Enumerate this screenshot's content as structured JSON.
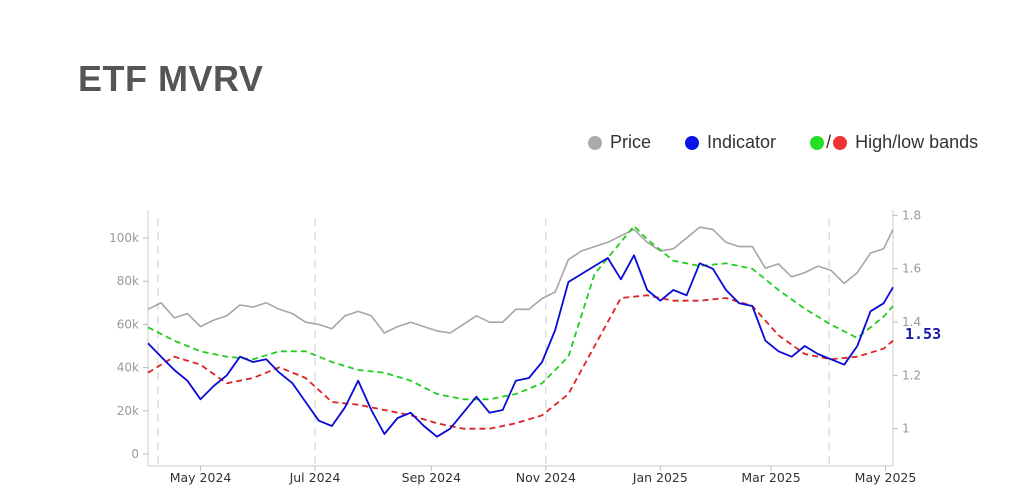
{
  "title": "ETF MVRV",
  "legend": {
    "price_label": "Price",
    "indicator_label": "Indicator",
    "bands_label": "High/low bands",
    "slash": "/"
  },
  "colors": {
    "price": "#a6a6a6",
    "indicator": "#0a0ad6",
    "high_band": "#22cc22",
    "low_band": "#dd2222",
    "legend_price_dot": "#aaaaaa",
    "legend_indicator_dot": "#0a14e6",
    "legend_high_dot": "#22e022",
    "legend_low_dot": "#ee3333"
  },
  "chart_data": {
    "type": "line",
    "x_range": [
      "2024-04-03",
      "2025-05-05"
    ],
    "left_axis": {
      "ticks": [
        "0",
        "20k",
        "40k",
        "60k",
        "80k",
        "100k"
      ],
      "ylim": [
        0,
        110000
      ]
    },
    "right_axis": {
      "ticks": [
        "1",
        "1.2",
        "1.4",
        "1.6",
        "1.8"
      ],
      "ylim": [
        0.86,
        1.82
      ]
    },
    "x_ticks": [
      {
        "date": "2024-05-01",
        "label": "May 2024"
      },
      {
        "date": "2024-07-01",
        "label": "Jul 2024"
      },
      {
        "date": "2024-09-01",
        "label": "Sep 2024"
      },
      {
        "date": "2024-11-01",
        "label": "Nov 2024"
      },
      {
        "date": "2025-01-01",
        "label": "Jan 2025"
      },
      {
        "date": "2025-03-01",
        "label": "Mar 2025"
      },
      {
        "date": "2025-05-01",
        "label": "May 2025"
      }
    ],
    "grid": "vertical dashed at month ticks",
    "legend_position": "top-right",
    "end_label": "1.53",
    "series": [
      {
        "name": "Price",
        "axis": "left",
        "points": [
          [
            "2024-04-03",
            67000
          ],
          [
            "2024-04-10",
            70000
          ],
          [
            "2024-04-17",
            63000
          ],
          [
            "2024-04-24",
            65000
          ],
          [
            "2024-05-01",
            59000
          ],
          [
            "2024-05-08",
            62000
          ],
          [
            "2024-05-15",
            64000
          ],
          [
            "2024-05-22",
            69000
          ],
          [
            "2024-05-29",
            68000
          ],
          [
            "2024-06-05",
            70000
          ],
          [
            "2024-06-12",
            67000
          ],
          [
            "2024-06-19",
            65000
          ],
          [
            "2024-06-26",
            61000
          ],
          [
            "2024-07-03",
            60000
          ],
          [
            "2024-07-10",
            58000
          ],
          [
            "2024-07-17",
            64000
          ],
          [
            "2024-07-24",
            66000
          ],
          [
            "2024-07-31",
            64000
          ],
          [
            "2024-08-07",
            56000
          ],
          [
            "2024-08-14",
            59000
          ],
          [
            "2024-08-21",
            61000
          ],
          [
            "2024-08-28",
            59000
          ],
          [
            "2024-09-04",
            57000
          ],
          [
            "2024-09-11",
            56000
          ],
          [
            "2024-09-18",
            60000
          ],
          [
            "2024-09-25",
            64000
          ],
          [
            "2024-10-02",
            61000
          ],
          [
            "2024-10-09",
            61000
          ],
          [
            "2024-10-16",
            67000
          ],
          [
            "2024-10-23",
            67000
          ],
          [
            "2024-10-30",
            72000
          ],
          [
            "2024-11-06",
            75000
          ],
          [
            "2024-11-13",
            90000
          ],
          [
            "2024-11-20",
            94000
          ],
          [
            "2024-11-27",
            96000
          ],
          [
            "2024-12-04",
            98000
          ],
          [
            "2024-12-11",
            101000
          ],
          [
            "2024-12-18",
            104000
          ],
          [
            "2024-12-25",
            98000
          ],
          [
            "2025-01-01",
            94000
          ],
          [
            "2025-01-08",
            95000
          ],
          [
            "2025-01-15",
            100000
          ],
          [
            "2025-01-22",
            105000
          ],
          [
            "2025-01-29",
            104000
          ],
          [
            "2025-02-05",
            98000
          ],
          [
            "2025-02-12",
            96000
          ],
          [
            "2025-02-19",
            96000
          ],
          [
            "2025-02-26",
            86000
          ],
          [
            "2025-03-05",
            88000
          ],
          [
            "2025-03-12",
            82000
          ],
          [
            "2025-03-19",
            84000
          ],
          [
            "2025-03-26",
            87000
          ],
          [
            "2025-04-02",
            85000
          ],
          [
            "2025-04-09",
            79000
          ],
          [
            "2025-04-16",
            84000
          ],
          [
            "2025-04-23",
            93000
          ],
          [
            "2025-04-30",
            95000
          ],
          [
            "2025-05-05",
            104000
          ]
        ]
      },
      {
        "name": "Indicator",
        "axis": "right",
        "points": [
          [
            "2024-04-03",
            1.32
          ],
          [
            "2024-04-10",
            1.27
          ],
          [
            "2024-04-17",
            1.22
          ],
          [
            "2024-04-24",
            1.18
          ],
          [
            "2024-05-01",
            1.11
          ],
          [
            "2024-05-08",
            1.16
          ],
          [
            "2024-05-15",
            1.2
          ],
          [
            "2024-05-22",
            1.27
          ],
          [
            "2024-05-29",
            1.25
          ],
          [
            "2024-06-05",
            1.26
          ],
          [
            "2024-06-12",
            1.21
          ],
          [
            "2024-06-19",
            1.17
          ],
          [
            "2024-06-26",
            1.1
          ],
          [
            "2024-07-03",
            1.03
          ],
          [
            "2024-07-10",
            1.01
          ],
          [
            "2024-07-17",
            1.08
          ],
          [
            "2024-07-24",
            1.18
          ],
          [
            "2024-07-31",
            1.07
          ],
          [
            "2024-08-07",
            0.98
          ],
          [
            "2024-08-14",
            1.04
          ],
          [
            "2024-08-21",
            1.06
          ],
          [
            "2024-08-28",
            1.01
          ],
          [
            "2024-09-04",
            0.97
          ],
          [
            "2024-09-11",
            1.0
          ],
          [
            "2024-09-18",
            1.06
          ],
          [
            "2024-09-25",
            1.12
          ],
          [
            "2024-10-02",
            1.06
          ],
          [
            "2024-10-09",
            1.07
          ],
          [
            "2024-10-16",
            1.18
          ],
          [
            "2024-10-23",
            1.19
          ],
          [
            "2024-10-30",
            1.25
          ],
          [
            "2024-11-06",
            1.37
          ],
          [
            "2024-11-13",
            1.55
          ],
          [
            "2024-11-20",
            1.58
          ],
          [
            "2024-11-27",
            1.61
          ],
          [
            "2024-12-04",
            1.64
          ],
          [
            "2024-12-11",
            1.56
          ],
          [
            "2024-12-18",
            1.65
          ],
          [
            "2024-12-25",
            1.52
          ],
          [
            "2025-01-01",
            1.48
          ],
          [
            "2025-01-08",
            1.52
          ],
          [
            "2025-01-15",
            1.5
          ],
          [
            "2025-01-22",
            1.62
          ],
          [
            "2025-01-29",
            1.6
          ],
          [
            "2025-02-05",
            1.52
          ],
          [
            "2025-02-12",
            1.47
          ],
          [
            "2025-02-19",
            1.46
          ],
          [
            "2025-02-26",
            1.33
          ],
          [
            "2025-03-05",
            1.29
          ],
          [
            "2025-03-12",
            1.27
          ],
          [
            "2025-03-19",
            1.31
          ],
          [
            "2025-03-26",
            1.28
          ],
          [
            "2025-04-02",
            1.26
          ],
          [
            "2025-04-09",
            1.24
          ],
          [
            "2025-04-16",
            1.31
          ],
          [
            "2025-04-23",
            1.44
          ],
          [
            "2025-04-30",
            1.47
          ],
          [
            "2025-05-05",
            1.53
          ]
        ]
      },
      {
        "name": "High band",
        "axis": "right",
        "points": [
          [
            "2024-04-03",
            1.38
          ],
          [
            "2024-04-17",
            1.33
          ],
          [
            "2024-05-01",
            1.29
          ],
          [
            "2024-05-15",
            1.27
          ],
          [
            "2024-05-29",
            1.26
          ],
          [
            "2024-06-12",
            1.29
          ],
          [
            "2024-06-26",
            1.29
          ],
          [
            "2024-07-10",
            1.25
          ],
          [
            "2024-07-24",
            1.22
          ],
          [
            "2024-08-07",
            1.21
          ],
          [
            "2024-08-21",
            1.18
          ],
          [
            "2024-09-04",
            1.13
          ],
          [
            "2024-09-18",
            1.11
          ],
          [
            "2024-10-02",
            1.11
          ],
          [
            "2024-10-16",
            1.13
          ],
          [
            "2024-10-30",
            1.17
          ],
          [
            "2024-11-13",
            1.27
          ],
          [
            "2024-11-27",
            1.58
          ],
          [
            "2024-12-11",
            1.7
          ],
          [
            "2024-12-18",
            1.76
          ],
          [
            "2024-12-25",
            1.71
          ],
          [
            "2025-01-08",
            1.63
          ],
          [
            "2025-01-22",
            1.61
          ],
          [
            "2025-02-05",
            1.62
          ],
          [
            "2025-02-19",
            1.6
          ],
          [
            "2025-03-05",
            1.52
          ],
          [
            "2025-03-19",
            1.45
          ],
          [
            "2025-04-02",
            1.39
          ],
          [
            "2025-04-16",
            1.34
          ],
          [
            "2025-04-30",
            1.42
          ],
          [
            "2025-05-05",
            1.46
          ]
        ]
      },
      {
        "name": "Low band",
        "axis": "right",
        "points": [
          [
            "2024-04-03",
            1.21
          ],
          [
            "2024-04-17",
            1.27
          ],
          [
            "2024-05-01",
            1.24
          ],
          [
            "2024-05-15",
            1.17
          ],
          [
            "2024-05-29",
            1.19
          ],
          [
            "2024-06-12",
            1.23
          ],
          [
            "2024-06-26",
            1.19
          ],
          [
            "2024-07-10",
            1.1
          ],
          [
            "2024-07-24",
            1.09
          ],
          [
            "2024-08-07",
            1.07
          ],
          [
            "2024-08-21",
            1.05
          ],
          [
            "2024-09-04",
            1.02
          ],
          [
            "2024-09-18",
            1.0
          ],
          [
            "2024-10-02",
            1.0
          ],
          [
            "2024-10-16",
            1.02
          ],
          [
            "2024-10-30",
            1.05
          ],
          [
            "2024-11-13",
            1.13
          ],
          [
            "2024-11-27",
            1.31
          ],
          [
            "2024-12-11",
            1.49
          ],
          [
            "2024-12-25",
            1.5
          ],
          [
            "2025-01-08",
            1.48
          ],
          [
            "2025-01-22",
            1.48
          ],
          [
            "2025-02-05",
            1.49
          ],
          [
            "2025-02-19",
            1.46
          ],
          [
            "2025-03-05",
            1.35
          ],
          [
            "2025-03-19",
            1.28
          ],
          [
            "2025-04-02",
            1.26
          ],
          [
            "2025-04-16",
            1.27
          ],
          [
            "2025-04-30",
            1.3
          ],
          [
            "2025-05-05",
            1.33
          ]
        ]
      }
    ]
  }
}
